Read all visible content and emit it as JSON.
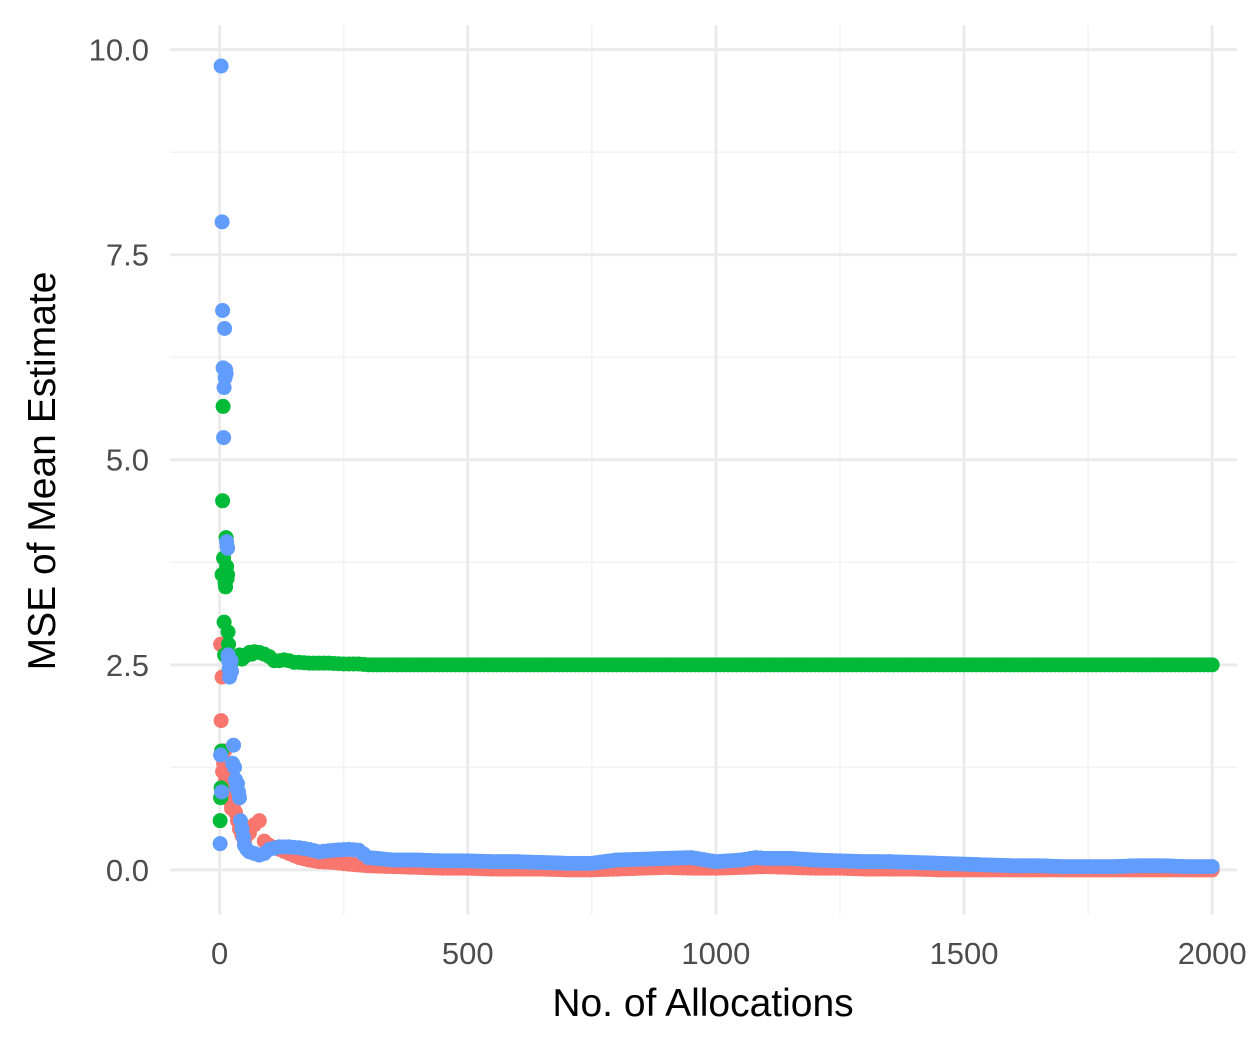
{
  "chart_data": {
    "type": "scatter",
    "title": "",
    "xlabel": "No. of Allocations",
    "ylabel": "MSE of Mean Estimate",
    "xlim": [
      -100,
      2050
    ],
    "ylim": [
      -0.55,
      10.3
    ],
    "x_ticks": [
      0,
      500,
      1000,
      1500,
      2000
    ],
    "x_tick_labels": [
      "0",
      "500",
      "1000",
      "1500",
      "2000"
    ],
    "y_ticks": [
      0,
      2.5,
      5,
      7.5,
      10
    ],
    "y_tick_labels": [
      "0.0",
      "2.5",
      "5.0",
      "7.5",
      "10.0"
    ],
    "grid": true,
    "legend": "none",
    "series": [
      {
        "color": "#F8766D",
        "points": [
          [
            2,
            2.75
          ],
          [
            3,
            1.82
          ],
          [
            4,
            1.45
          ],
          [
            5,
            2.35
          ],
          [
            6,
            1.2
          ],
          [
            8,
            1.3
          ],
          [
            10,
            1.45
          ],
          [
            12,
            1.1
          ],
          [
            14,
            1.0
          ],
          [
            16,
            0.9
          ],
          [
            18,
            1.2
          ],
          [
            20,
            0.85
          ],
          [
            24,
            0.75
          ],
          [
            28,
            0.8
          ],
          [
            32,
            0.7
          ],
          [
            36,
            0.6
          ],
          [
            40,
            0.5
          ],
          [
            45,
            0.42
          ],
          [
            50,
            0.35
          ],
          [
            55,
            0.5
          ],
          [
            60,
            0.45
          ],
          [
            70,
            0.55
          ],
          [
            80,
            0.6
          ],
          [
            90,
            0.35
          ],
          [
            100,
            0.3
          ],
          [
            120,
            0.25
          ],
          [
            140,
            0.2
          ],
          [
            160,
            0.15
          ],
          [
            180,
            0.12
          ],
          [
            200,
            0.1
          ],
          [
            230,
            0.09
          ],
          [
            260,
            0.07
          ],
          [
            300,
            0.05
          ],
          [
            350,
            0.04
          ],
          [
            400,
            0.03
          ],
          [
            450,
            0.02
          ],
          [
            500,
            0.02
          ],
          [
            550,
            0.01
          ],
          [
            600,
            0.01
          ],
          [
            650,
            0.01
          ],
          [
            700,
            0.0
          ],
          [
            750,
            0.0
          ],
          [
            800,
            0.01
          ],
          [
            850,
            0.02
          ],
          [
            900,
            0.03
          ],
          [
            950,
            0.02
          ],
          [
            1000,
            0.02
          ],
          [
            1050,
            0.03
          ],
          [
            1100,
            0.04
          ],
          [
            1150,
            0.03
          ],
          [
            1200,
            0.02
          ],
          [
            1250,
            0.02
          ],
          [
            1300,
            0.01
          ],
          [
            1350,
            0.01
          ],
          [
            1400,
            0.01
          ],
          [
            1450,
            0.0
          ],
          [
            1500,
            0.0
          ],
          [
            1550,
            0.0
          ],
          [
            1600,
            0.0
          ],
          [
            1650,
            0.0
          ],
          [
            1700,
            0.0
          ],
          [
            1750,
            0.0
          ],
          [
            1800,
            0.0
          ],
          [
            1850,
            0.0
          ],
          [
            1900,
            0.0
          ],
          [
            1950,
            0.0
          ],
          [
            2000,
            0.0
          ]
        ]
      },
      {
        "color": "#00BA38",
        "points": [
          [
            1,
            0.6
          ],
          [
            2,
            0.88
          ],
          [
            3,
            1.0
          ],
          [
            4,
            1.45
          ],
          [
            5,
            3.6
          ],
          [
            6,
            4.5
          ],
          [
            7,
            5.65
          ],
          [
            8,
            3.8
          ],
          [
            9,
            3.02
          ],
          [
            10,
            2.62
          ],
          [
            11,
            3.5
          ],
          [
            12,
            3.45
          ],
          [
            13,
            4.05
          ],
          [
            14,
            3.7
          ],
          [
            15,
            3.55
          ],
          [
            16,
            3.6
          ],
          [
            17,
            2.9
          ],
          [
            18,
            2.75
          ],
          [
            19,
            2.62
          ],
          [
            20,
            2.6
          ],
          [
            22,
            2.5
          ],
          [
            24,
            2.55
          ],
          [
            26,
            2.6
          ],
          [
            28,
            2.58
          ],
          [
            30,
            2.58
          ],
          [
            35,
            2.6
          ],
          [
            40,
            2.62
          ],
          [
            45,
            2.57
          ],
          [
            50,
            2.6
          ],
          [
            55,
            2.62
          ],
          [
            60,
            2.65
          ],
          [
            65,
            2.63
          ],
          [
            70,
            2.66
          ],
          [
            80,
            2.65
          ],
          [
            90,
            2.63
          ],
          [
            100,
            2.6
          ],
          [
            110,
            2.55
          ],
          [
            120,
            2.55
          ],
          [
            130,
            2.56
          ],
          [
            140,
            2.55
          ],
          [
            150,
            2.53
          ],
          [
            160,
            2.53
          ],
          [
            180,
            2.52
          ],
          [
            200,
            2.52
          ],
          [
            220,
            2.52
          ],
          [
            250,
            2.51
          ],
          [
            280,
            2.51
          ],
          [
            300,
            2.5
          ],
          [
            350,
            2.5
          ],
          [
            400,
            2.5
          ],
          [
            450,
            2.5
          ],
          [
            500,
            2.5
          ],
          [
            550,
            2.5
          ],
          [
            600,
            2.5
          ],
          [
            650,
            2.5
          ],
          [
            700,
            2.5
          ],
          [
            750,
            2.5
          ],
          [
            800,
            2.5
          ],
          [
            850,
            2.5
          ],
          [
            900,
            2.5
          ],
          [
            950,
            2.5
          ],
          [
            1000,
            2.5
          ],
          [
            1050,
            2.5
          ],
          [
            1100,
            2.5
          ],
          [
            1150,
            2.5
          ],
          [
            1200,
            2.5
          ],
          [
            1250,
            2.5
          ],
          [
            1300,
            2.5
          ],
          [
            1350,
            2.5
          ],
          [
            1400,
            2.5
          ],
          [
            1450,
            2.5
          ],
          [
            1500,
            2.5
          ],
          [
            1550,
            2.5
          ],
          [
            1600,
            2.5
          ],
          [
            1650,
            2.5
          ],
          [
            1700,
            2.5
          ],
          [
            1750,
            2.5
          ],
          [
            1800,
            2.5
          ],
          [
            1850,
            2.5
          ],
          [
            1900,
            2.5
          ],
          [
            1950,
            2.5
          ],
          [
            2000,
            2.5
          ]
        ]
      },
      {
        "color": "#619CFF",
        "points": [
          [
            1,
            0.32
          ],
          [
            2,
            1.4
          ],
          [
            3,
            9.8
          ],
          [
            4,
            0.95
          ],
          [
            5,
            7.9
          ],
          [
            6,
            6.82
          ],
          [
            7,
            6.12
          ],
          [
            8,
            5.27
          ],
          [
            9,
            5.88
          ],
          [
            10,
            6.6
          ],
          [
            11,
            6.0
          ],
          [
            12,
            6.1
          ],
          [
            13,
            6.05
          ],
          [
            14,
            4.0
          ],
          [
            15,
            3.95
          ],
          [
            16,
            3.92
          ],
          [
            17,
            2.62
          ],
          [
            18,
            2.55
          ],
          [
            19,
            2.45
          ],
          [
            20,
            2.35
          ],
          [
            21,
            2.5
          ],
          [
            22,
            2.4
          ],
          [
            23,
            2.55
          ],
          [
            24,
            2.42
          ],
          [
            26,
            1.3
          ],
          [
            28,
            1.52
          ],
          [
            30,
            1.25
          ],
          [
            32,
            1.1
          ],
          [
            34,
            1.0
          ],
          [
            36,
            1.05
          ],
          [
            38,
            0.95
          ],
          [
            40,
            0.88
          ],
          [
            42,
            0.6
          ],
          [
            45,
            0.5
          ],
          [
            48,
            0.4
          ],
          [
            50,
            0.3
          ],
          [
            55,
            0.25
          ],
          [
            60,
            0.22
          ],
          [
            70,
            0.2
          ],
          [
            80,
            0.18
          ],
          [
            90,
            0.2
          ],
          [
            100,
            0.25
          ],
          [
            120,
            0.28
          ],
          [
            140,
            0.28
          ],
          [
            160,
            0.27
          ],
          [
            180,
            0.25
          ],
          [
            200,
            0.22
          ],
          [
            230,
            0.24
          ],
          [
            260,
            0.25
          ],
          [
            280,
            0.24
          ],
          [
            300,
            0.15
          ],
          [
            350,
            0.12
          ],
          [
            400,
            0.12
          ],
          [
            450,
            0.11
          ],
          [
            500,
            0.11
          ],
          [
            550,
            0.1
          ],
          [
            600,
            0.1
          ],
          [
            650,
            0.09
          ],
          [
            700,
            0.08
          ],
          [
            750,
            0.08
          ],
          [
            800,
            0.12
          ],
          [
            850,
            0.13
          ],
          [
            900,
            0.14
          ],
          [
            950,
            0.15
          ],
          [
            1000,
            0.1
          ],
          [
            1050,
            0.12
          ],
          [
            1080,
            0.15
          ],
          [
            1100,
            0.14
          ],
          [
            1150,
            0.14
          ],
          [
            1200,
            0.12
          ],
          [
            1250,
            0.11
          ],
          [
            1300,
            0.1
          ],
          [
            1350,
            0.1
          ],
          [
            1400,
            0.09
          ],
          [
            1450,
            0.08
          ],
          [
            1500,
            0.07
          ],
          [
            1550,
            0.06
          ],
          [
            1600,
            0.05
          ],
          [
            1650,
            0.05
          ],
          [
            1700,
            0.04
          ],
          [
            1750,
            0.04
          ],
          [
            1800,
            0.04
          ],
          [
            1850,
            0.05
          ],
          [
            1900,
            0.05
          ],
          [
            1950,
            0.04
          ],
          [
            2000,
            0.04
          ]
        ]
      }
    ]
  }
}
